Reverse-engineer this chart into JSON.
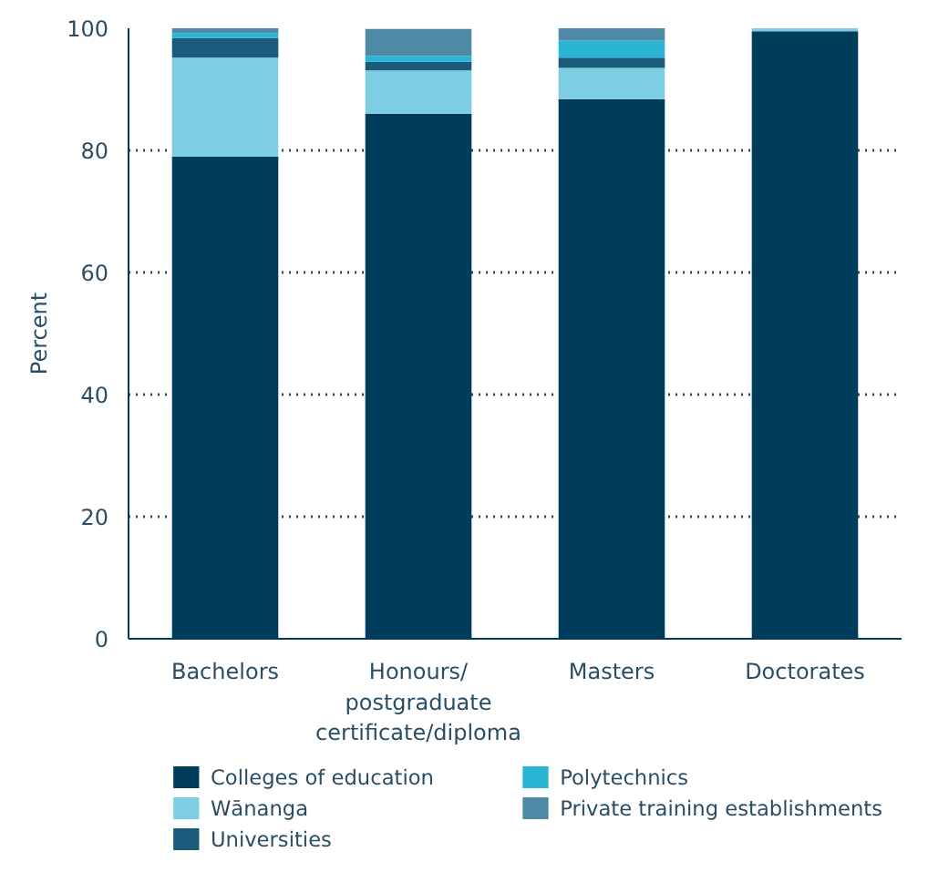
{
  "chart_data": {
    "type": "bar",
    "stacked": true,
    "ylabel": "Percent",
    "categories": [
      "Bachelors",
      "Honours/\npostgraduate\ncertificate/diploma",
      "Masters",
      "Doctorates"
    ],
    "series": [
      {
        "name": "Colleges of education",
        "color": "#003d5c",
        "values": [
          79,
          86,
          88.4,
          99.5
        ]
      },
      {
        "name": "Wānanga",
        "color": "#7dcde3",
        "values": [
          16.2,
          7.1,
          5.1,
          0.5
        ]
      },
      {
        "name": "Universities",
        "color": "#1a5a7a",
        "values": [
          3.2,
          1.4,
          1.7,
          0
        ]
      },
      {
        "name": "Polytechnics",
        "color": "#2bb5d5",
        "values": [
          0.8,
          1.0,
          2.8,
          0
        ]
      },
      {
        "name": "Private training establishments",
        "color": "#4e89a6",
        "values": [
          0.8,
          4.4,
          2.0,
          0
        ]
      }
    ],
    "ylim": [
      0,
      100
    ],
    "yticks": [
      0,
      20,
      40,
      60,
      80,
      100
    ],
    "grid": "y",
    "legend": "bottom"
  }
}
